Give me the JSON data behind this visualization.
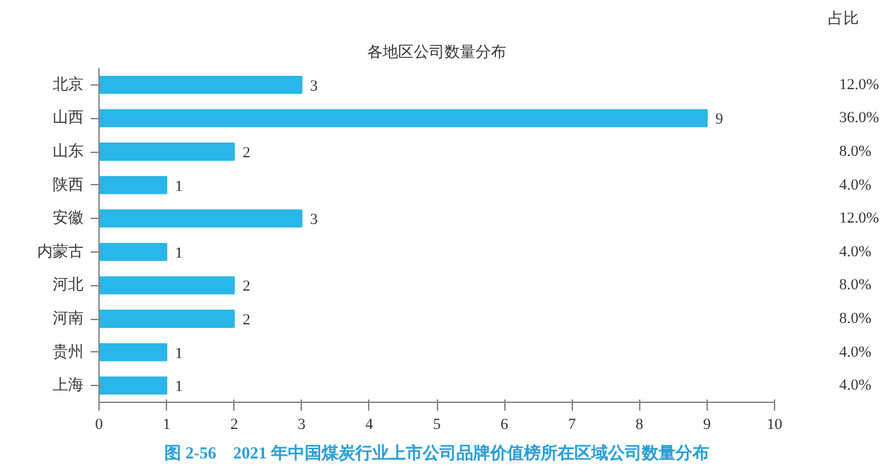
{
  "chart_data": {
    "type": "bar",
    "orientation": "horizontal",
    "title": "各地区公司数量分布",
    "categories": [
      "北京",
      "山西",
      "山东",
      "陕西",
      "安徽",
      "内蒙古",
      "河北",
      "河南",
      "贵州",
      "上海"
    ],
    "values": [
      3,
      9,
      2,
      1,
      3,
      1,
      2,
      2,
      1,
      1
    ],
    "color": "#29b6e8",
    "data_labels": true,
    "xlim": [
      0,
      10
    ],
    "xticks": [
      0,
      1,
      2,
      3,
      4,
      5,
      6,
      7,
      8,
      9,
      10
    ],
    "grid": false,
    "annotations": [
      "占比",
      "12.0%",
      "36.0%",
      "8.0%",
      "4.0%",
      "12.0%",
      "4.0%",
      "8.0%",
      "8.0%",
      "4.0%",
      "4.0%",
      "图 2-56　2021 年中国煤炭行业上市公司品牌价值榜所在区域公司数量分布"
    ]
  }
}
